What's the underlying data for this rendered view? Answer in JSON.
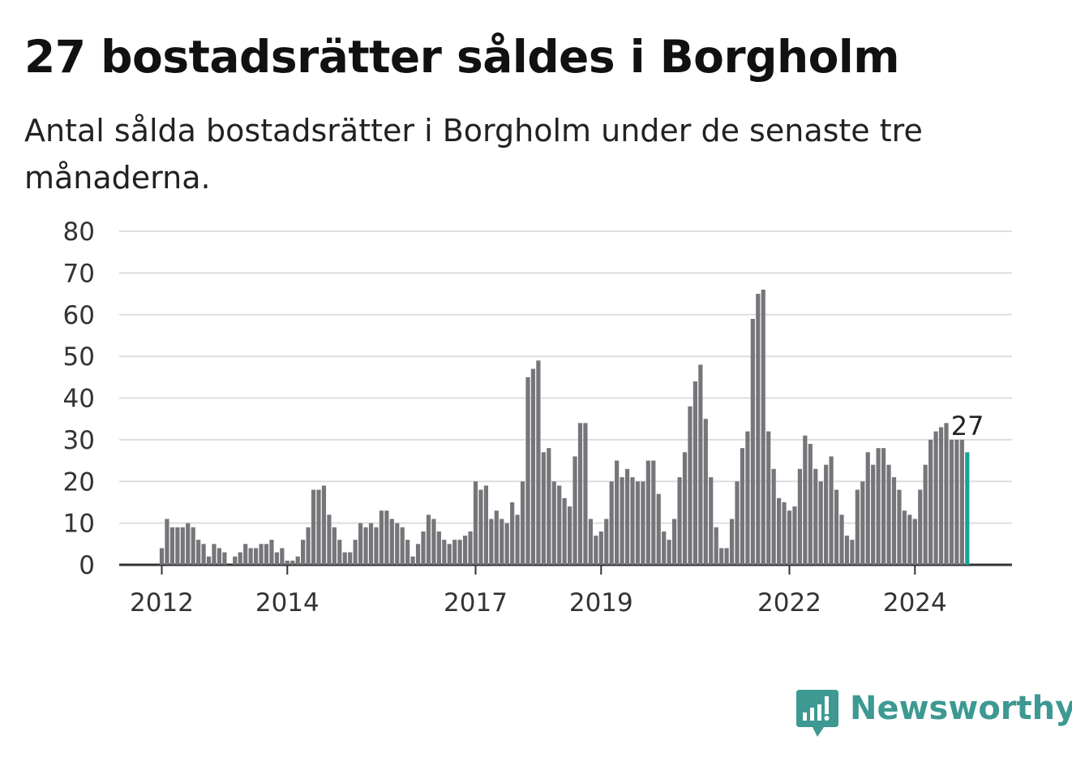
{
  "title": "27 bostadsrätter såldes i Borgholm",
  "subtitle": "Antal sålda bostadsrätter i Borgholm under de senaste tre månaderna.",
  "brand": {
    "name": "Newsworthy",
    "icon": "bar-chart-speech-bubble-icon",
    "color": "#3d9992"
  },
  "chart_data": {
    "type": "bar",
    "ylim": [
      0,
      80
    ],
    "yticks": [
      0,
      10,
      20,
      30,
      40,
      50,
      60,
      70,
      80
    ],
    "xticks": [
      "2012",
      "2014",
      "2017",
      "2019",
      "2022",
      "2024"
    ],
    "xtick_index": [
      0,
      24,
      60,
      84,
      120,
      144
    ],
    "grid": true,
    "bar_color": "#76757a",
    "highlight_color": "#17a39a",
    "annotation": {
      "index": 154,
      "text": "27"
    },
    "x_note": "one bar per month, monthly rolling three-month sum, starting 2012-01",
    "values": [
      4,
      11,
      9,
      9,
      9,
      10,
      9,
      6,
      5,
      2,
      5,
      4,
      3,
      0,
      2,
      3,
      5,
      4,
      4,
      5,
      5,
      6,
      3,
      4,
      1,
      1,
      2,
      6,
      9,
      18,
      18,
      19,
      12,
      9,
      6,
      3,
      3,
      6,
      10,
      9,
      10,
      9,
      13,
      13,
      11,
      10,
      9,
      6,
      2,
      5,
      8,
      12,
      11,
      8,
      6,
      5,
      6,
      6,
      7,
      8,
      20,
      18,
      19,
      11,
      13,
      11,
      10,
      15,
      12,
      20,
      45,
      47,
      49,
      27,
      28,
      20,
      19,
      16,
      14,
      26,
      34,
      34,
      11,
      7,
      8,
      11,
      20,
      25,
      21,
      23,
      21,
      20,
      20,
      25,
      25,
      17,
      8,
      6,
      11,
      21,
      27,
      38,
      44,
      48,
      35,
      21,
      9,
      4,
      4,
      11,
      20,
      28,
      32,
      59,
      65,
      66,
      32,
      23,
      16,
      15,
      13,
      14,
      23,
      31,
      29,
      23,
      20,
      24,
      26,
      18,
      12,
      7,
      6,
      18,
      20,
      27,
      24,
      28,
      28,
      24,
      21,
      18,
      13,
      12,
      11,
      18,
      24,
      30,
      32,
      33,
      34,
      30,
      30,
      30,
      27
    ]
  }
}
